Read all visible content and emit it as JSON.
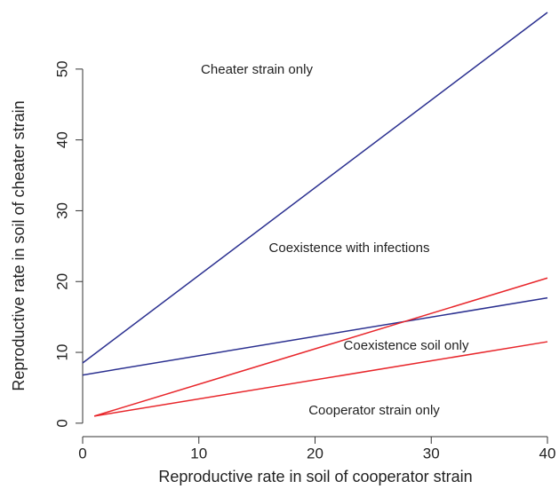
{
  "chart_data": {
    "type": "line",
    "xlabel": "Reproductive rate in soil of cooperator strain",
    "ylabel": "Reproductive rate in soil of cheater strain",
    "xlim": [
      0,
      40
    ],
    "ylim": [
      -1.9,
      58
    ],
    "xticks": [
      0,
      10,
      20,
      30,
      40
    ],
    "yticks": [
      0,
      10,
      20,
      30,
      40,
      50
    ],
    "series": [
      {
        "color": "#2b3090",
        "x": [
          0,
          40
        ],
        "values": [
          8.5,
          58
        ]
      },
      {
        "color": "#2b3090",
        "x": [
          0,
          40
        ],
        "values": [
          6.8,
          17.7
        ]
      },
      {
        "color": "#e8262b",
        "x": [
          1,
          40
        ],
        "values": [
          1,
          20.5
        ]
      },
      {
        "color": "#e8262b",
        "x": [
          1,
          40
        ],
        "values": [
          1,
          11.5
        ]
      }
    ],
    "annotations": [
      "Cheater strain only",
      "Coexistence with infections",
      "Coexistence soil only",
      "Cooperator strain only"
    ]
  }
}
